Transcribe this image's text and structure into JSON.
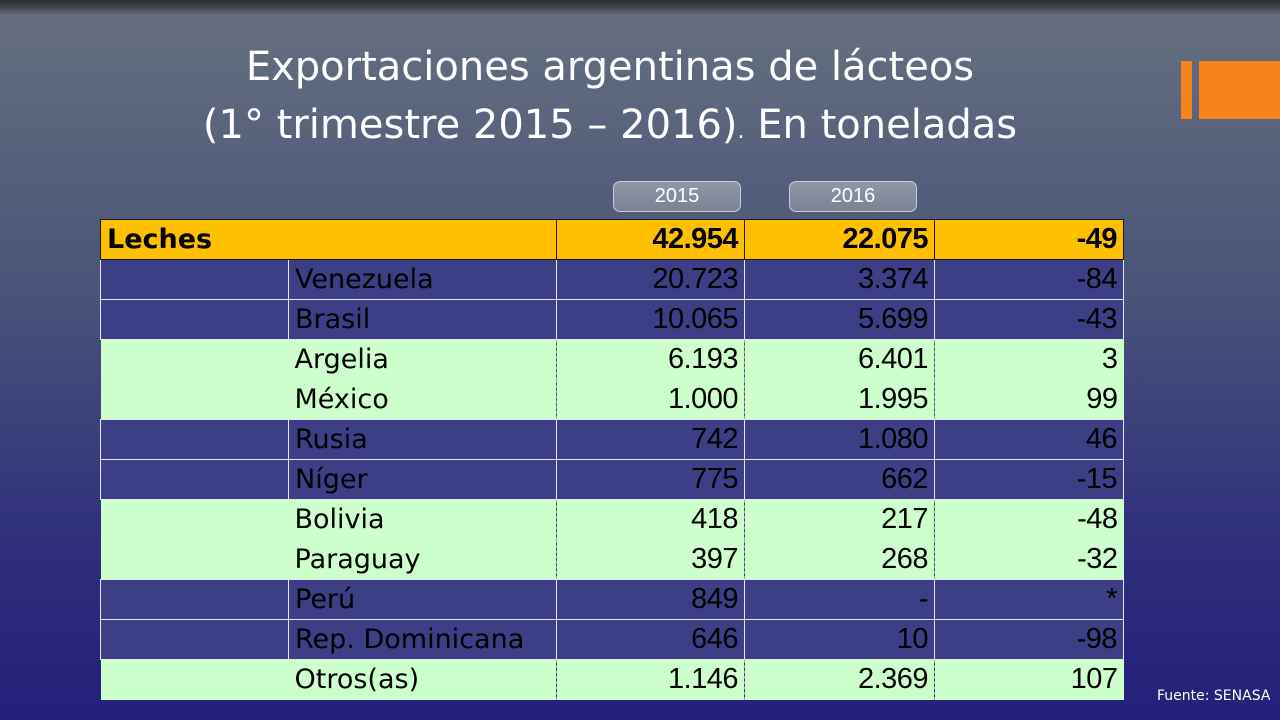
{
  "title": {
    "line1": "Exportaciones argentinas de lácteos",
    "line2_main": "(1° trimestre 2015 – 2016)",
    "line2_dot": ".",
    "line2_suffix": " En toneladas"
  },
  "colors": {
    "accent_orange": "#f7841a",
    "header_yellow": "#ffc000",
    "row_green": "#ccffcc",
    "row_blue": "#3c3f86"
  },
  "column_tabs": [
    "2015",
    "2016"
  ],
  "table": {
    "header": {
      "label": "Leches",
      "v2015": "42.954",
      "v2016": "22.075",
      "var": "-49"
    },
    "rows": [
      {
        "country": "Venezuela",
        "v2015": "20.723",
        "v2016": "3.374",
        "var": "-84",
        "style": "blue"
      },
      {
        "country": "Brasil",
        "v2015": "10.065",
        "v2016": "5.699",
        "var": "-43",
        "style": "blue"
      },
      {
        "country": "Argelia",
        "v2015": "6.193",
        "v2016": "6.401",
        "var": "3",
        "style": "green"
      },
      {
        "country": "México",
        "v2015": "1.000",
        "v2016": "1.995",
        "var": "99",
        "style": "green"
      },
      {
        "country": "Rusia",
        "v2015": "742",
        "v2016": "1.080",
        "var": "46",
        "style": "blue"
      },
      {
        "country": "Níger",
        "v2015": "775",
        "v2016": "662",
        "var": "-15",
        "style": "blue"
      },
      {
        "country": "Bolivia",
        "v2015": "418",
        "v2016": "217",
        "var": "-48",
        "style": "green"
      },
      {
        "country": "Paraguay",
        "v2015": "397",
        "v2016": "268",
        "var": "-32",
        "style": "green"
      },
      {
        "country": "Perú",
        "v2015": "849",
        "v2016": "-",
        "var": "*",
        "style": "blue"
      },
      {
        "country": "Rep. Dominicana",
        "v2015": "646",
        "v2016": "10",
        "var": "-98",
        "style": "blue"
      },
      {
        "country": "Otros(as)",
        "v2015": "1.146",
        "v2016": "2.369",
        "var": "107",
        "style": "green"
      }
    ]
  },
  "source": "Fuente: SENASA"
}
